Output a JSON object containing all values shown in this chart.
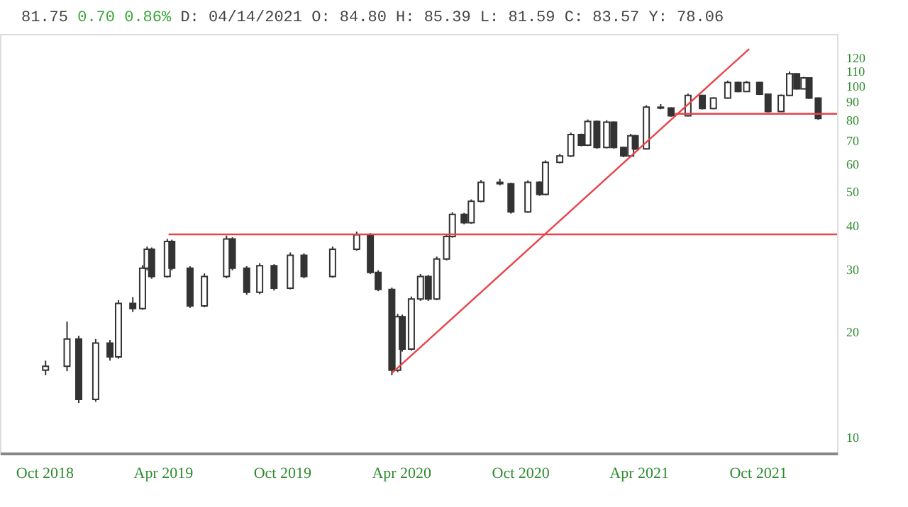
{
  "chart_data": {
    "type": "candlestick",
    "annotations": [
      "81.75",
      "0.70 0.86%",
      "D: 04/14/2021 O:  84.80 H:  85.39 L:  81.59 C:  83.57 Y:  78.06"
    ],
    "color": "#333333",
    "x": [
      "2018-10-03",
      "2018-11-05",
      "2018-11-23",
      "2018-12-19",
      "2019-01-10",
      "2019-01-23",
      "2019-02-14",
      "2019-03-01",
      "2019-03-08",
      "2019-03-15",
      "2019-04-08",
      "2019-04-15",
      "2019-05-13",
      "2019-06-04",
      "2019-07-08",
      "2019-07-17",
      "2019-08-08",
      "2019-08-28",
      "2019-09-19",
      "2019-10-14",
      "2019-11-04",
      "2019-12-18",
      "2020-01-24",
      "2020-02-14",
      "2020-02-26",
      "2020-03-18",
      "2020-03-27",
      "2020-04-03",
      "2020-04-17",
      "2020-05-01",
      "2020-05-13",
      "2020-05-26",
      "2020-06-10",
      "2020-06-19",
      "2020-07-07",
      "2020-07-18",
      "2020-08-02",
      "2020-08-31",
      "2020-09-17",
      "2020-10-13",
      "2020-10-31",
      "2020-11-09",
      "2020-12-01",
      "2020-12-18",
      "2021-01-03",
      "2021-01-13",
      "2021-01-27",
      "2021-02-11",
      "2021-02-22",
      "2021-03-09",
      "2021-03-20",
      "2021-03-27",
      "2021-04-13",
      "2021-05-05",
      "2021-05-21",
      "2021-06-16",
      "2021-07-08",
      "2021-07-25",
      "2021-08-16",
      "2021-09-01",
      "2021-09-14",
      "2021-10-04",
      "2021-10-17",
      "2021-11-06",
      "2021-11-19",
      "2021-11-30",
      "2021-12-11",
      "2021-12-19",
      "2022-01-02"
    ],
    "ohlc": [
      [
        15.5,
        16.5,
        15.0,
        15.9
      ],
      [
        15.9,
        21.3,
        15.4,
        19.0
      ],
      [
        19.0,
        19.4,
        12.5,
        12.8
      ],
      [
        12.8,
        19.0,
        12.6,
        18.5
      ],
      [
        18.5,
        18.9,
        16.5,
        16.9
      ],
      [
        16.9,
        24.5,
        16.7,
        24.0
      ],
      [
        24.0,
        25.0,
        22.7,
        23.2
      ],
      [
        23.2,
        30.8,
        23.0,
        30.2
      ],
      [
        30.2,
        34.8,
        29.8,
        34.2
      ],
      [
        34.2,
        34.6,
        28.2,
        28.6
      ],
      [
        28.6,
        36.6,
        28.4,
        36.0
      ],
      [
        36.0,
        36.4,
        29.8,
        30.2
      ],
      [
        30.2,
        30.6,
        23.3,
        23.6
      ],
      [
        23.6,
        29.2,
        23.4,
        28.6
      ],
      [
        28.6,
        37.4,
        28.3,
        36.6
      ],
      [
        36.6,
        37.0,
        29.8,
        30.2
      ],
      [
        30.2,
        30.6,
        25.4,
        25.8
      ],
      [
        25.8,
        31.2,
        25.5,
        30.7
      ],
      [
        30.7,
        31.0,
        26.1,
        26.5
      ],
      [
        26.5,
        33.5,
        26.3,
        32.9
      ],
      [
        32.9,
        33.3,
        28.3,
        28.6
      ],
      [
        28.6,
        34.8,
        28.4,
        34.2
      ],
      [
        34.2,
        38.4,
        33.9,
        37.6
      ],
      [
        37.6,
        38.0,
        29.1,
        29.4
      ],
      [
        29.4,
        29.8,
        26.0,
        26.3
      ],
      [
        26.3,
        26.6,
        15.0,
        15.5
      ],
      [
        15.5,
        22.4,
        15.3,
        22.0
      ],
      [
        22.0,
        22.3,
        17.5,
        17.8
      ],
      [
        17.8,
        25.1,
        17.6,
        24.7
      ],
      [
        24.7,
        29.1,
        24.4,
        28.6
      ],
      [
        28.6,
        28.9,
        24.4,
        24.7
      ],
      [
        24.7,
        32.6,
        24.5,
        32.1
      ],
      [
        32.1,
        37.8,
        31.8,
        37.2
      ],
      [
        37.2,
        43.6,
        36.9,
        43.0
      ],
      [
        43.0,
        43.4,
        40.3,
        40.7
      ],
      [
        40.7,
        47.4,
        40.4,
        46.8
      ],
      [
        46.8,
        53.8,
        46.5,
        53.0
      ],
      [
        53.0,
        54.2,
        52.0,
        52.5
      ],
      [
        52.5,
        52.9,
        43.2,
        43.7
      ],
      [
        43.7,
        53.7,
        43.4,
        53.0
      ],
      [
        53.0,
        53.4,
        48.5,
        49.0
      ],
      [
        49.0,
        61.2,
        48.7,
        60.4
      ],
      [
        60.4,
        63.8,
        60.0,
        63.0
      ],
      [
        63.0,
        73.4,
        62.6,
        72.5
      ],
      [
        72.5,
        72.9,
        67.1,
        67.6
      ],
      [
        67.6,
        80.0,
        67.2,
        79.0
      ],
      [
        79.0,
        79.4,
        66.1,
        66.6
      ],
      [
        66.6,
        79.6,
        66.2,
        78.6
      ],
      [
        78.6,
        79.0,
        66.1,
        66.6
      ],
      [
        66.6,
        67.0,
        62.5,
        63.0
      ],
      [
        63.0,
        72.8,
        62.6,
        71.9
      ],
      [
        71.9,
        72.3,
        65.5,
        66.0
      ],
      [
        66.0,
        87.8,
        65.7,
        86.7
      ],
      [
        86.7,
        88.5,
        85.5,
        86.2
      ],
      [
        86.2,
        86.6,
        81.5,
        82.0
      ],
      [
        82.0,
        94.8,
        81.6,
        93.6
      ],
      [
        93.6,
        94.0,
        85.4,
        85.9
      ],
      [
        85.9,
        92.6,
        85.5,
        92.0
      ],
      [
        92.0,
        103.2,
        91.6,
        101.9
      ],
      [
        101.9,
        102.3,
        95.6,
        96.1
      ],
      [
        96.1,
        103.0,
        95.7,
        101.9
      ],
      [
        101.9,
        102.3,
        93.9,
        94.4
      ],
      [
        94.4,
        94.8,
        83.8,
        84.3
      ],
      [
        84.3,
        94.2,
        84.0,
        93.6
      ],
      [
        93.6,
        109.5,
        93.2,
        107.9
      ],
      [
        107.9,
        108.3,
        97.3,
        97.8
      ],
      [
        97.8,
        105.8,
        97.4,
        105.0
      ],
      [
        105.0,
        105.4,
        91.5,
        92.0
      ],
      [
        92.0,
        92.4,
        79.8,
        80.5
      ]
    ],
    "series": [
      {
        "type": "line",
        "color": "#e8424a",
        "x": [
          "2020-03-18",
          "2021-09-18"
        ],
        "values": [
          15.2,
          127
        ]
      },
      {
        "type": "line",
        "color": "#e8424a",
        "x": [
          "2019-04-10",
          "2022-01-31"
        ],
        "values": [
          37.7,
          37.7
        ]
      },
      {
        "type": "line",
        "color": "#e8424a",
        "x": [
          "2021-05-27",
          "2022-01-31"
        ],
        "values": [
          83.0,
          83.0
        ]
      }
    ],
    "log": "y",
    "ylim": [
      9,
      140
    ],
    "yticks": [
      10,
      20,
      30,
      40,
      50,
      60,
      70,
      80,
      90,
      100,
      110,
      120
    ],
    "xlim": [
      "2018-07-25",
      "2022-01-31"
    ],
    "xticks": [
      {
        "value": "2018-10-01",
        "label": "Oct 2018"
      },
      {
        "value": "2019-04-01",
        "label": "Apr 2019"
      },
      {
        "value": "2019-10-01",
        "label": "Oct 2019"
      },
      {
        "value": "2020-04-01",
        "label": "Apr 2020"
      },
      {
        "value": "2020-10-01",
        "label": "Oct 2020"
      },
      {
        "value": "2021-04-01",
        "label": "Apr 2021"
      },
      {
        "value": "2021-10-01",
        "label": "Oct 2021"
      }
    ],
    "grid": false
  }
}
